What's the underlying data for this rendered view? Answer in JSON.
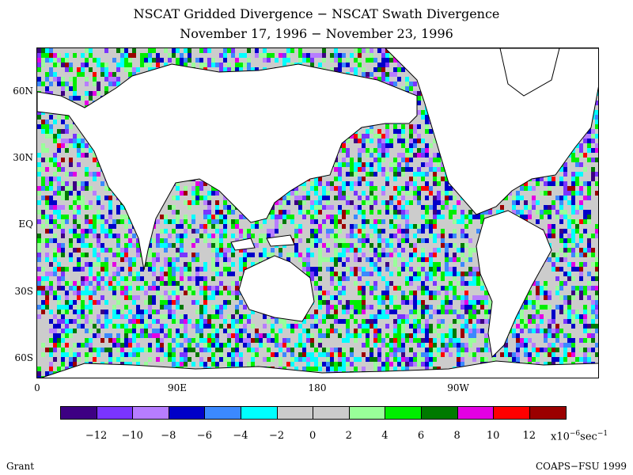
{
  "title": {
    "line1": "NSCAT Gridded Divergence − NSCAT Swath Divergence",
    "line2": "November 17, 1996 − November 23, 1996"
  },
  "latitude_labels": [
    "60N",
    "30N",
    "EQ",
    "30S",
    "60S"
  ],
  "longitude_labels": [
    "0",
    "90E",
    "180",
    "90W"
  ],
  "colorbar": {
    "colors": [
      "#3d0083",
      "#7a34ff",
      "#b77dff",
      "#0000c8",
      "#3b89ff",
      "#00ffff",
      "#cccccc",
      "#cccccc",
      "#99ff99",
      "#00ee00",
      "#007a00",
      "#e400e4",
      "#ff0000",
      "#9b0000"
    ],
    "ticks": [
      "−12",
      "−10",
      "−8",
      "−6",
      "−4",
      "−2",
      "0",
      "2",
      "4",
      "6",
      "8",
      "10",
      "12"
    ],
    "units_prefix": "x10",
    "units_exp": "−6",
    "units_suffix": "sec",
    "units_exp2": "−1"
  },
  "footer": {
    "left": "Grant",
    "right": "COAPS−FSU 1999"
  }
}
